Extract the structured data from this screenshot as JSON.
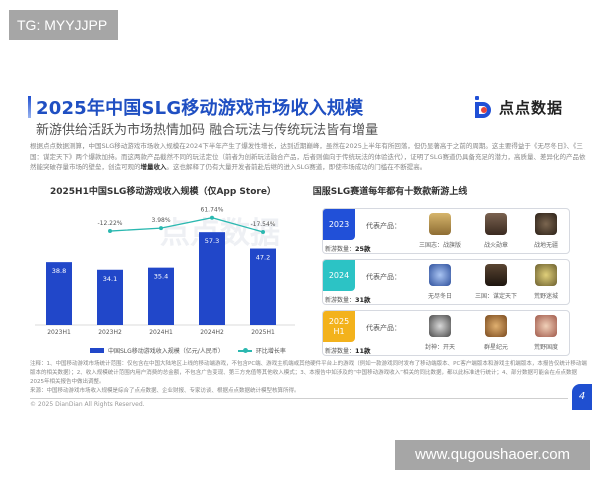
{
  "watermarks": {
    "top": "TG: MYYJJPP",
    "bottom": "www.qugoushaoer.com"
  },
  "header": {
    "title": "2025年中国SLG移动游戏市场收入规模",
    "subtitle": "新游供给活跃为市场热情加码 融合玩法与传统玩法皆有增量",
    "logo_text": "点点数据"
  },
  "intro": {
    "text": "根据点点数据测算，中国SLG移动游戏市场收入规模在2024下半年产生了爆发性增长，达到近期巅峰，虽然在2025上半年有所回落，但仍显著高于之前的周期。这主要得益于《无尽冬日》、《三国：谋定天下》两个爆款加持。而这两款产品截然不同的玩法定位（前者为创新玩法融合产品，后者则偏向于传统玩法的体验迭代），证明了SLG赛道仍具备充足的潜力，高质量、差异化的产品依然能突破存量市场的壁垒，创造可观的",
    "highlight": "增量收入",
    "tail": "。这也解释了仍有大量开发者前赴后继的进入SLG赛道，即使市场成功的门槛在不断提高。"
  },
  "left_panel": {
    "title": "2025H1中国SLG移动游戏收入规模（仅App Store）",
    "watermark": "点点数据"
  },
  "chart_data": {
    "type": "bar",
    "title": "2025H1中国SLG移动游戏收入规模（仅App Store）",
    "categories": [
      "2023H1",
      "2023H2",
      "2024H1",
      "2024H2",
      "2025H1"
    ],
    "series": [
      {
        "name": "中国SLG移动游戏收入规模（亿元/人民币）",
        "type": "bar",
        "color": "#2147c9",
        "values": [
          38.8,
          34.1,
          35.4,
          57.3,
          47.2
        ]
      },
      {
        "name": "环比增长率",
        "type": "line",
        "color": "#2bb8b0",
        "values": [
          null,
          -12.22,
          3.98,
          61.74,
          -17.54
        ],
        "labels": [
          "",
          "-12.22%",
          "3.98%",
          "61.74%",
          "-17.54%"
        ]
      }
    ],
    "bar_labels": [
      "38.8",
      "34.1",
      "35.4",
      "57.3",
      "47.2"
    ],
    "xlabel": "",
    "ylabel": "",
    "grid": false,
    "legend_position": "bottom"
  },
  "right_panel": {
    "title": "国服SLG赛道每年都有十数款新游上线",
    "rep_label": "代表产品：",
    "count_label": "新游数量：",
    "cards": [
      {
        "year": "2023",
        "count": "25款",
        "color": "#2150d8",
        "games": [
          {
            "name": "三国志：战旗版",
            "icon_color": "#b89454"
          },
          {
            "name": "战火勋章",
            "icon_color": "#5b4637"
          },
          {
            "name": "战地无疆",
            "icon_color": "#4a3a2c"
          }
        ]
      },
      {
        "year": "2024",
        "count": "31款",
        "color": "#2cc3c5",
        "games": [
          {
            "name": "无尽冬日",
            "icon_color": "#4f79c8"
          },
          {
            "name": "三国：谋定天下",
            "icon_color": "#3a2a1f"
          },
          {
            "name": "荒野迷城",
            "icon_color": "#a79a55"
          }
        ]
      },
      {
        "year": "2025 H1",
        "year_line1": "2025",
        "year_line2": "H1",
        "count": "11款",
        "color": "#f3b21c",
        "games": [
          {
            "name": "封神：开天",
            "icon_color": "#6b6b6b"
          },
          {
            "name": "群星纪元",
            "icon_color": "#b07a3a"
          },
          {
            "name": "荒野国度",
            "icon_color": "#c28a6a"
          }
        ]
      }
    ]
  },
  "notes": {
    "line1": "注释：1、中国移动游戏市场统计范围：仅包含在中国大陆地区上线的移动端游戏，不包含PC端、游戏主机端或其他硬件平台上的游戏（例如一款游戏同时发布了移动端版本、PC客户端版本和游戏主机端版本，本报告仅统计移动端版本的相关数据）；2、收入规模统计范围内用户消费的总金额，不包含广告变现、第三方充值等其他收入模式；3、本报告中如涉及的“中国移动游戏收入”相关的同比数据，都以此标准进行统计；4、部分数据可能会在点点数据2025年相关报告中做出调整。",
    "line2": "来源：中国移动游戏市场收入规模是综合了点点数据、企业财报、专家访谈、根据点点数据统计模型核算所得。"
  },
  "footer": {
    "copyright": "© 2025 DianDian All Rights Reserved.",
    "page_number": "4"
  }
}
